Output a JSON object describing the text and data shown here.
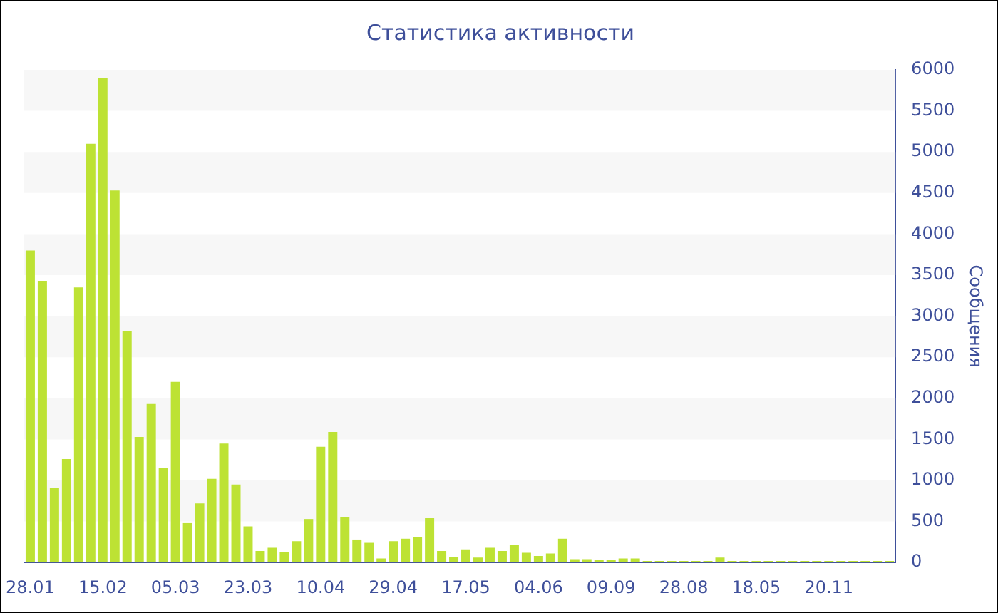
{
  "chart_data": {
    "type": "bar",
    "title": "Статистика активности",
    "ylabel": "Сообщения",
    "categories": [
      "28.01",
      null,
      null,
      null,
      null,
      null,
      "15.02",
      null,
      null,
      null,
      null,
      null,
      "05.03",
      null,
      null,
      null,
      null,
      null,
      "23.03",
      null,
      null,
      null,
      null,
      null,
      "10.04",
      null,
      null,
      null,
      null,
      null,
      "29.04",
      null,
      null,
      null,
      null,
      null,
      "17.05",
      null,
      null,
      null,
      null,
      null,
      "04.06",
      null,
      null,
      null,
      null,
      null,
      "09.09",
      null,
      null,
      null,
      null,
      null,
      "28.08",
      null,
      null,
      null,
      null,
      null,
      "18.05",
      null,
      null,
      null,
      null,
      null,
      "20.11",
      null,
      null,
      null,
      null,
      null
    ],
    "values": [
      3800,
      3430,
      910,
      1260,
      3350,
      5100,
      5900,
      4530,
      2820,
      1530,
      1930,
      1150,
      2200,
      480,
      720,
      1020,
      1450,
      950,
      440,
      140,
      180,
      130,
      260,
      530,
      1410,
      1590,
      550,
      280,
      240,
      50,
      260,
      290,
      310,
      540,
      140,
      70,
      160,
      60,
      180,
      140,
      210,
      120,
      80,
      110,
      290,
      40,
      40,
      30,
      30,
      50,
      50,
      20,
      20,
      20,
      20,
      20,
      20,
      60,
      20,
      20,
      20,
      20,
      20,
      20,
      20,
      20,
      20,
      20,
      20,
      20,
      20,
      20
    ],
    "color": "#bde234",
    "ylim": [
      0,
      6000
    ],
    "yticks": [
      0,
      500,
      1000,
      1500,
      2000,
      2500,
      3000,
      3500,
      4000,
      4500,
      5000,
      5500,
      6000
    ],
    "bands": [
      {
        "axis": "y",
        "from": 500,
        "to": 1000,
        "color": "#f7f7f7"
      },
      {
        "axis": "y",
        "from": 1500,
        "to": 2000,
        "color": "#f7f7f7"
      },
      {
        "axis": "y",
        "from": 2500,
        "to": 3000,
        "color": "#f7f7f7"
      },
      {
        "axis": "y",
        "from": 3500,
        "to": 4000,
        "color": "#f7f7f7"
      },
      {
        "axis": "y",
        "from": 4500,
        "to": 5000,
        "color": "#f7f7f7"
      },
      {
        "axis": "y",
        "from": 5500,
        "to": 6000,
        "color": "#f7f7f7"
      }
    ]
  }
}
